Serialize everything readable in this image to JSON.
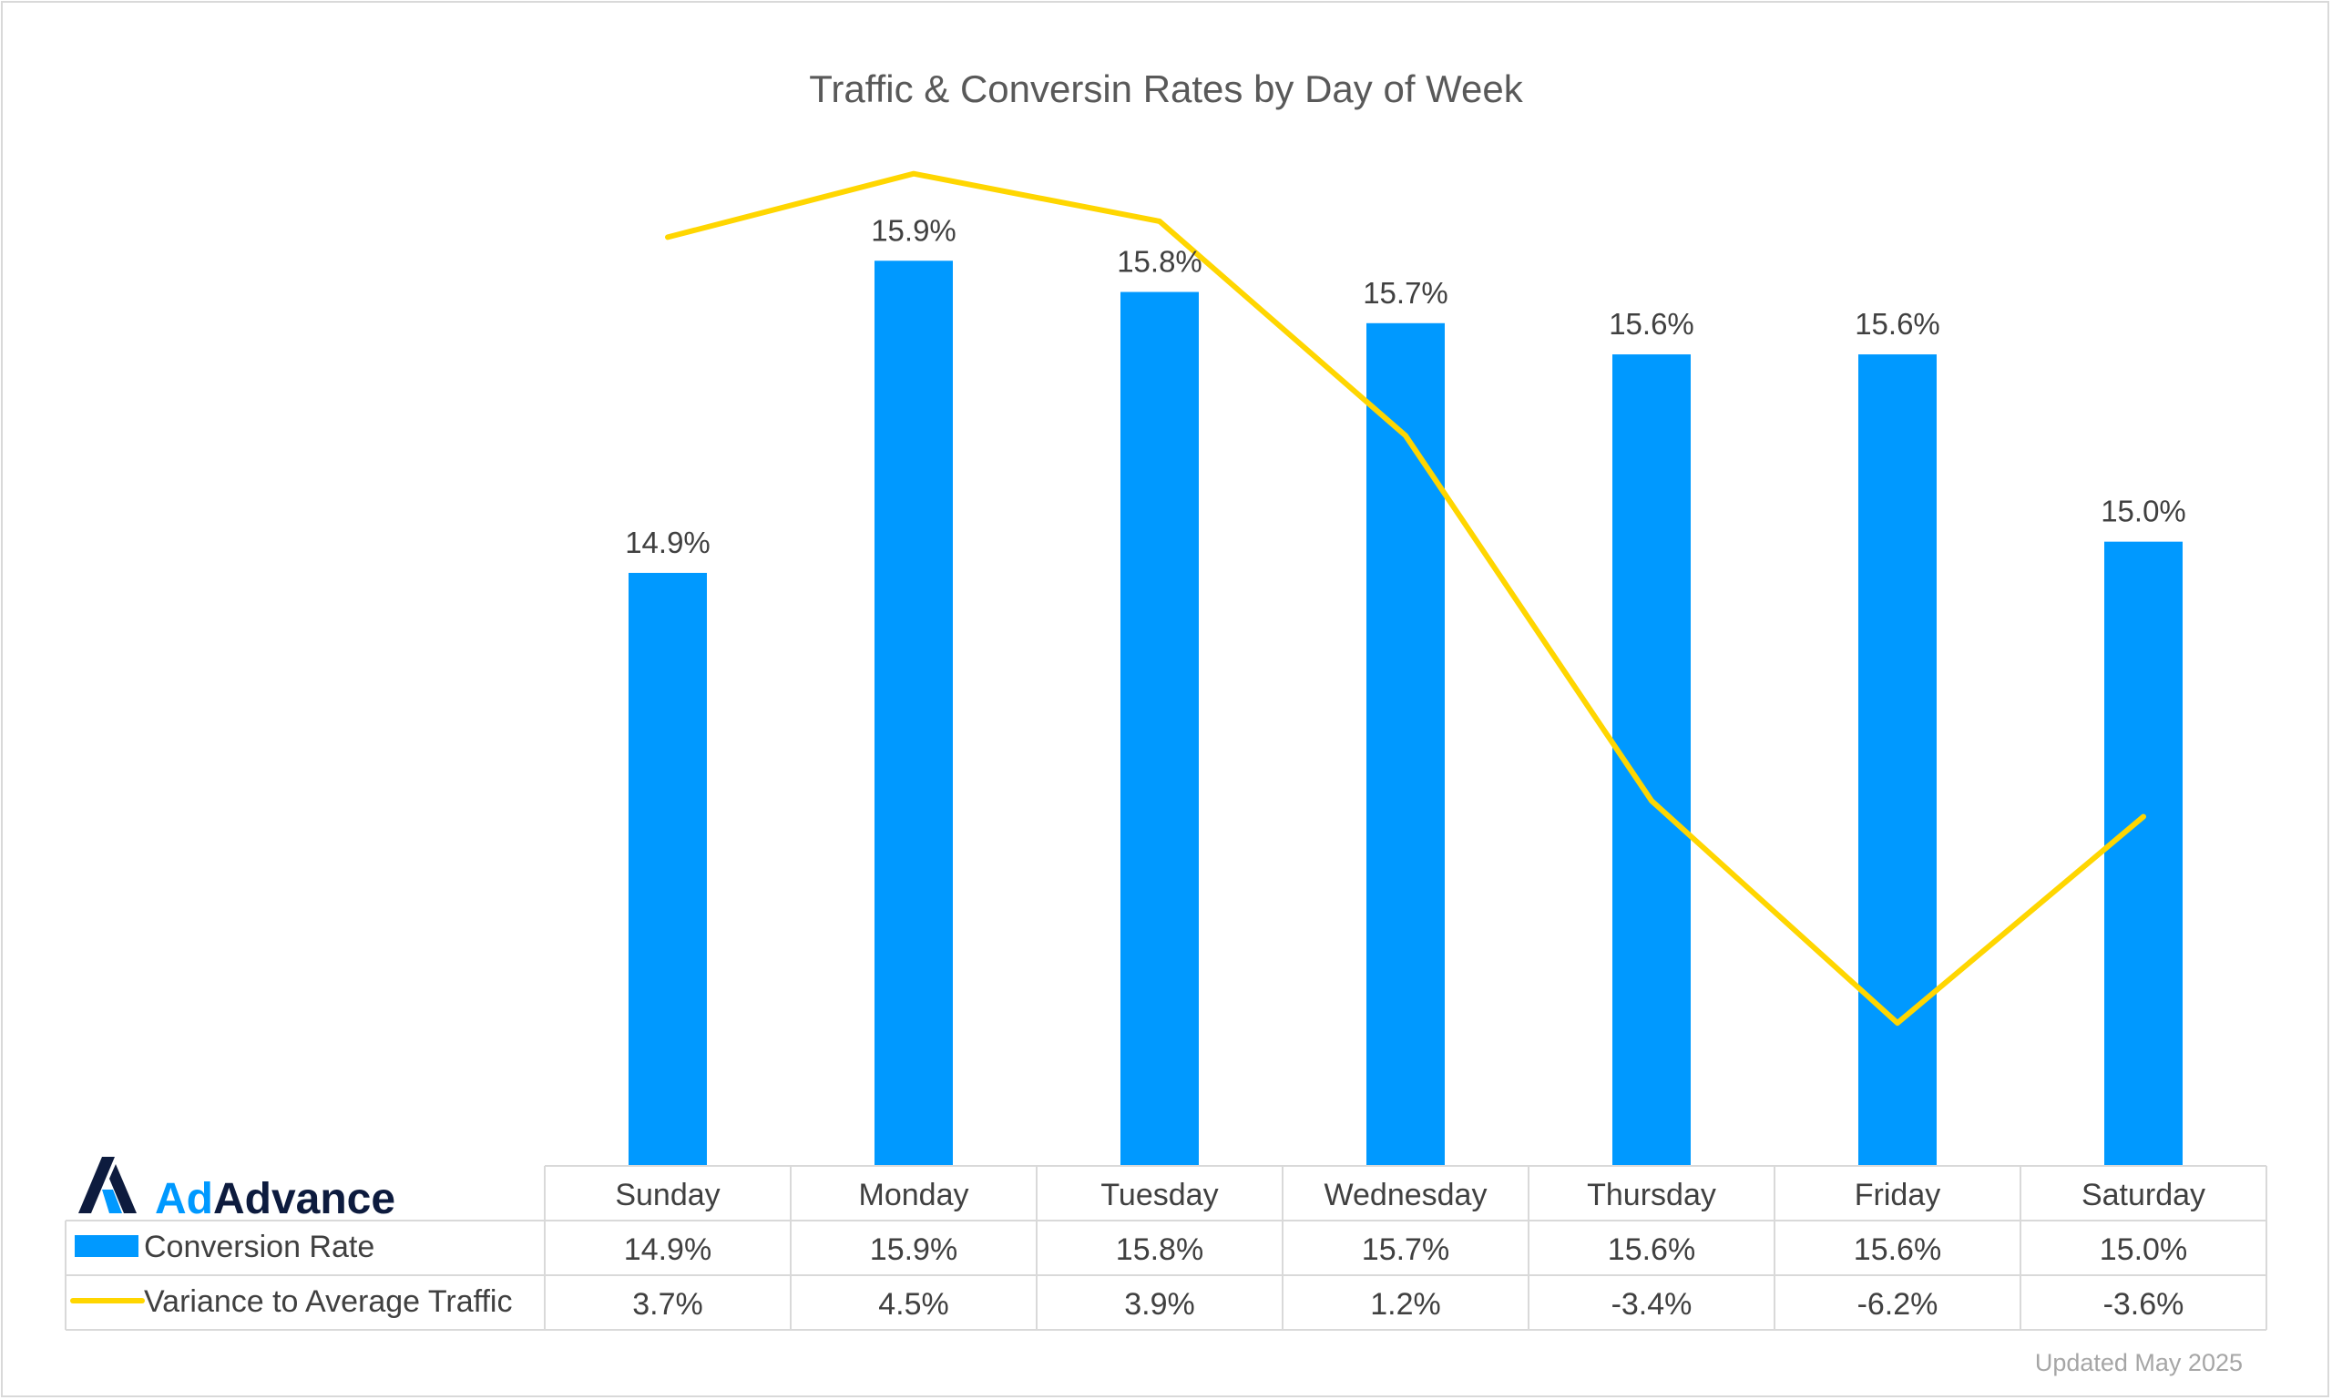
{
  "chart_data": {
    "type": "bar",
    "title": "Traffic & Conversin Rates by Day of Week",
    "categories": [
      "Sunday",
      "Monday",
      "Tuesday",
      "Wednesday",
      "Thursday",
      "Friday",
      "Saturday"
    ],
    "series": [
      {
        "name": "Conversion Rate",
        "type": "bar",
        "color": "#0099ff",
        "values": [
          14.9,
          15.9,
          15.8,
          15.7,
          15.6,
          15.6,
          15.0
        ],
        "labels": [
          "14.9%",
          "15.9%",
          "15.8%",
          "15.7%",
          "15.6%",
          "15.6%",
          "15.0%"
        ]
      },
      {
        "name": "Variance to Average Traffic",
        "type": "line",
        "color": "#ffd600",
        "values": [
          3.7,
          4.5,
          3.9,
          1.2,
          -3.4,
          -6.2,
          -3.6
        ],
        "labels": [
          "3.7%",
          "4.5%",
          "3.9%",
          "1.2%",
          "-3.4%",
          "-6.2%",
          "-3.6%"
        ]
      }
    ],
    "primary_axis": {
      "min": 13.0,
      "max": 16.0,
      "visible": false
    },
    "secondary_axis": {
      "min": -8.0,
      "max": 6.0,
      "visible": false
    },
    "grid": false,
    "legend": "data-table"
  },
  "logo": {
    "text_ad": "Ad",
    "text_advance": "Advance",
    "color_dark": "#0d1b3e",
    "color_blue": "#0099ff"
  },
  "footer": {
    "updated": "Updated May 2025"
  }
}
